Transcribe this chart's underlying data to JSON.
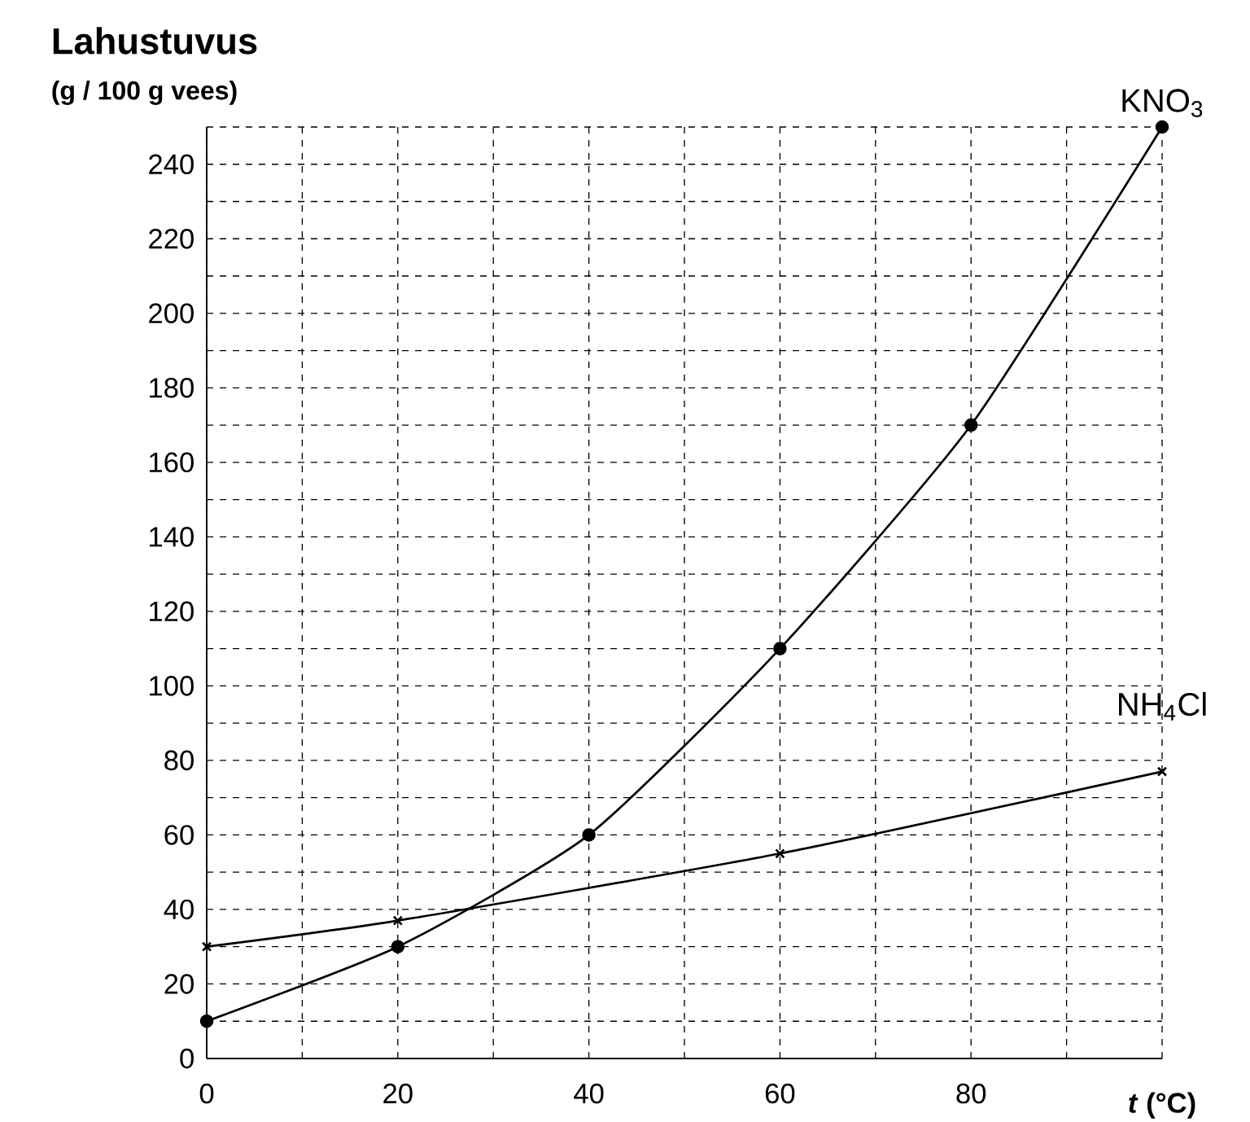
{
  "chart_data": {
    "type": "line",
    "title": "Lahustuvus",
    "subtitle": "(g / 100 g vees)",
    "xlabel": "*t* (°C)",
    "xlim": [
      0,
      100
    ],
    "ylim": [
      0,
      250
    ],
    "xticks": [
      0,
      {
        "value": 10,
        "label": null
      },
      20,
      {
        "value": 30,
        "label": null
      },
      40,
      {
        "value": 50,
        "label": null
      },
      60,
      {
        "value": 70,
        "label": null
      },
      80,
      {
        "value": 90,
        "label": null
      },
      {
        "value": 100,
        "label": null
      }
    ],
    "yticks": [
      0,
      {
        "value": 10,
        "label": null
      },
      20,
      {
        "value": 30,
        "label": null
      },
      40,
      {
        "value": 50,
        "label": null
      },
      60,
      {
        "value": 70,
        "label": null
      },
      80,
      {
        "value": 90,
        "label": null
      },
      100,
      {
        "value": 110,
        "label": null
      },
      120,
      {
        "value": 130,
        "label": null
      },
      140,
      {
        "value": 150,
        "label": null
      },
      160,
      {
        "value": 170,
        "label": null
      },
      180,
      {
        "value": 190,
        "label": null
      },
      200,
      {
        "value": 210,
        "label": null
      },
      220,
      {
        "value": 230,
        "label": null
      },
      240,
      {
        "value": 250,
        "label": null
      }
    ],
    "grid": true,
    "legend": false,
    "line_style": "solid",
    "series": [
      {
        "name": "KNO$_{3}$",
        "color": "#000000",
        "marker": "circle",
        "x": [
          0,
          20,
          40,
          60,
          80,
          100
        ],
        "values": [
          10,
          30,
          60,
          110,
          170,
          250
        ]
      },
      {
        "name": "NH$_{4}$Cl",
        "color": "#000000",
        "marker": "cross",
        "x": [
          0,
          20,
          60,
          100
        ],
        "values": [
          30,
          37,
          55,
          77
        ]
      }
    ]
  }
}
